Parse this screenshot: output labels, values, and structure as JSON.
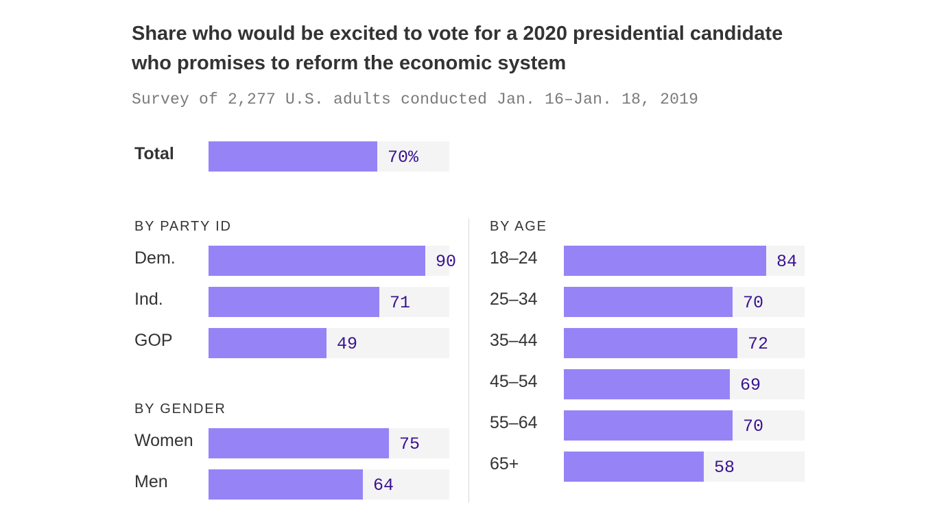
{
  "title": "Share who would be excited to vote for a 2020 presidential candidate who promises to reform the economic system",
  "subtitle": "Survey of 2,277 U.S. adults conducted Jan. 16–Jan. 18, 2019",
  "colors": {
    "bar": "#9684f7",
    "track": "#f4f4f4",
    "value_text": "#3b1391"
  },
  "chart_data": {
    "type": "bar",
    "orientation": "horizontal",
    "value_max": 100,
    "title": "Share who would be excited to vote for a 2020 presidential candidate who promises to reform the economic system",
    "subtitle": "Survey of 2,277 U.S. adults conducted Jan. 16–Jan. 18, 2019",
    "groups": [
      {
        "name": "",
        "categories": [
          "Total"
        ],
        "values": [
          70
        ],
        "value_labels": [
          "70%"
        ]
      },
      {
        "name": "BY PARTY ID",
        "categories": [
          "Dem.",
          "Ind.",
          "GOP"
        ],
        "values": [
          90,
          71,
          49
        ],
        "value_labels": [
          "90",
          "71",
          "49"
        ]
      },
      {
        "name": "BY GENDER",
        "categories": [
          "Women",
          "Men"
        ],
        "values": [
          75,
          64
        ],
        "value_labels": [
          "75",
          "64"
        ]
      },
      {
        "name": "BY AGE",
        "categories": [
          "18–24",
          "25–34",
          "35–44",
          "45–54",
          "55–64",
          "65+"
        ],
        "values": [
          84,
          70,
          72,
          69,
          70,
          58
        ],
        "value_labels": [
          "84",
          "70",
          "72",
          "69",
          "70",
          "58"
        ]
      }
    ]
  }
}
